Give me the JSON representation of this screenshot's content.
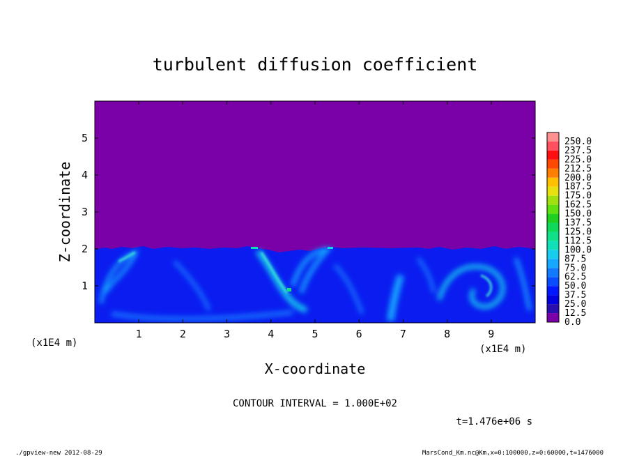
{
  "chart_data": {
    "type": "heatmap",
    "title": "turbulent diffusion coefficient",
    "xlabel": "X-coordinate",
    "ylabel": "Z-coordinate",
    "x_unit_label": "(x1E4 m)",
    "y_unit_label": "(x1E4 m)",
    "xlim": [
      0,
      10
    ],
    "ylim": [
      0,
      6
    ],
    "x_ticks": [
      "1",
      "2",
      "3",
      "4",
      "5",
      "6",
      "7",
      "8",
      "9"
    ],
    "y_ticks": [
      "1",
      "2",
      "3",
      "4",
      "5"
    ],
    "colorbar_levels": [
      "0.0",
      "12.5",
      "25.0",
      "37.5",
      "50.0",
      "62.5",
      "75.0",
      "87.5",
      "100.0",
      "112.5",
      "125.0",
      "137.5",
      "150.0",
      "162.5",
      "175.0",
      "187.5",
      "200.0",
      "212.5",
      "225.0",
      "237.5",
      "250.0"
    ],
    "colorbar_colors": [
      "#7a00a8",
      "#2a0fb0",
      "#0000e0",
      "#0018ff",
      "#0a4cff",
      "#127aff",
      "#16a8ff",
      "#18ccee",
      "#10e0b8",
      "#10e088",
      "#10d858",
      "#20d020",
      "#60e010",
      "#a0e010",
      "#e8e010",
      "#ffc000",
      "#ff8000",
      "#ff4800",
      "#ff1010",
      "#ff5060",
      "#ff9090"
    ],
    "boundary_layer_top_z": 2.0,
    "contour_interval": "CONTOUR INTERVAL = 1.000E+02",
    "time_label": "t=1.476e+06 s"
  },
  "footer": {
    "left": "./gpview-new  2012-08-29",
    "right": "MarsCond_Km.nc@Km,x=0:100000,z=0:60000,t=1476000"
  }
}
